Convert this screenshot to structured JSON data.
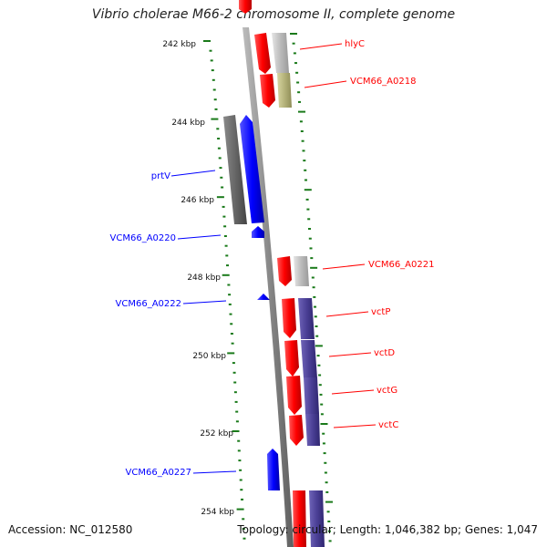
{
  "title": "Vibrio cholerae M66-2 chromosome II, complete genome",
  "footer": {
    "accession": "Accession: NC_012580",
    "summary": "Topology: circular; Length: 1,046,382 bp; Genes: 1,047"
  },
  "colors": {
    "forward": "#ff0000",
    "reverse": "#0000ff",
    "backbone": "#888888",
    "tick": "#1a7a1a",
    "gray_gene": "#bbbbbb",
    "dark_gray_gene": "#666666",
    "olive_gene": "#b5b37a",
    "purple_gene": "#4b4096"
  },
  "scale_labels": [
    "242 kbp",
    "244 kbp",
    "246 kbp",
    "248 kbp",
    "250 kbp",
    "252 kbp",
    "254 kbp"
  ],
  "gene_labels": [
    {
      "name": "hlyC",
      "strand": "forward"
    },
    {
      "name": "VCM66_A0218",
      "strand": "forward"
    },
    {
      "name": "prtV",
      "strand": "reverse"
    },
    {
      "name": "VCM66_A0220",
      "strand": "reverse"
    },
    {
      "name": "VCM66_A0221",
      "strand": "forward"
    },
    {
      "name": "VCM66_A0222",
      "strand": "reverse"
    },
    {
      "name": "vctP",
      "strand": "forward"
    },
    {
      "name": "vctD",
      "strand": "forward"
    },
    {
      "name": "vctG",
      "strand": "forward"
    },
    {
      "name": "vctC",
      "strand": "forward"
    },
    {
      "name": "VCM66_A0227",
      "strand": "reverse"
    }
  ]
}
